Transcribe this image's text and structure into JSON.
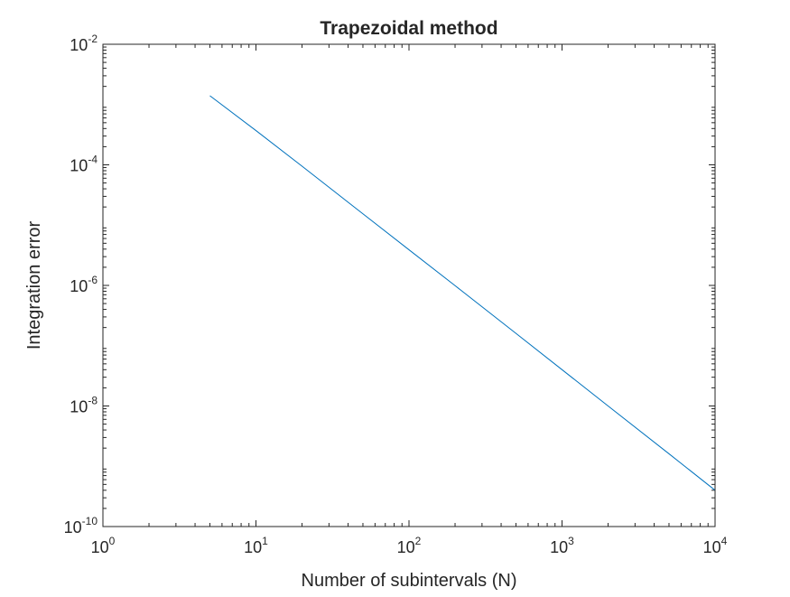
{
  "chart_data": {
    "type": "line",
    "title": "Trapezoidal method",
    "xlabel": "Number of subintervals (N)",
    "ylabel": "Integration error",
    "xscale": "log",
    "yscale": "log",
    "xlim": [
      1,
      10000
    ],
    "ylim": [
      1e-10,
      0.01
    ],
    "grid": false,
    "legend": "none",
    "x_ticks": [
      {
        "value": 1,
        "base": "10",
        "exp": "0"
      },
      {
        "value": 10,
        "base": "10",
        "exp": "1"
      },
      {
        "value": 100,
        "base": "10",
        "exp": "2"
      },
      {
        "value": 1000,
        "base": "10",
        "exp": "3"
      },
      {
        "value": 10000,
        "base": "10",
        "exp": "4"
      }
    ],
    "y_ticks": [
      {
        "value": 1e-10,
        "base": "10",
        "exp": "-10"
      },
      {
        "value": 1e-08,
        "base": "10",
        "exp": "-8"
      },
      {
        "value": 1e-06,
        "base": "10",
        "exp": "-6"
      },
      {
        "value": 0.0001,
        "base": "10",
        "exp": "-4"
      },
      {
        "value": 0.01,
        "base": "10",
        "exp": "-2"
      }
    ],
    "series": [
      {
        "color": "#0072BD",
        "x": [
          5,
          10,
          20,
          50,
          100,
          200,
          500,
          1000,
          2000,
          5000,
          10000
        ],
        "y": [
          0.0014,
          0.00037,
          9.5e-05,
          1.54e-05,
          3.9e-06,
          9.9e-07,
          1.6e-07,
          4e-08,
          1e-08,
          1.61e-09,
          4e-10
        ]
      }
    ]
  }
}
